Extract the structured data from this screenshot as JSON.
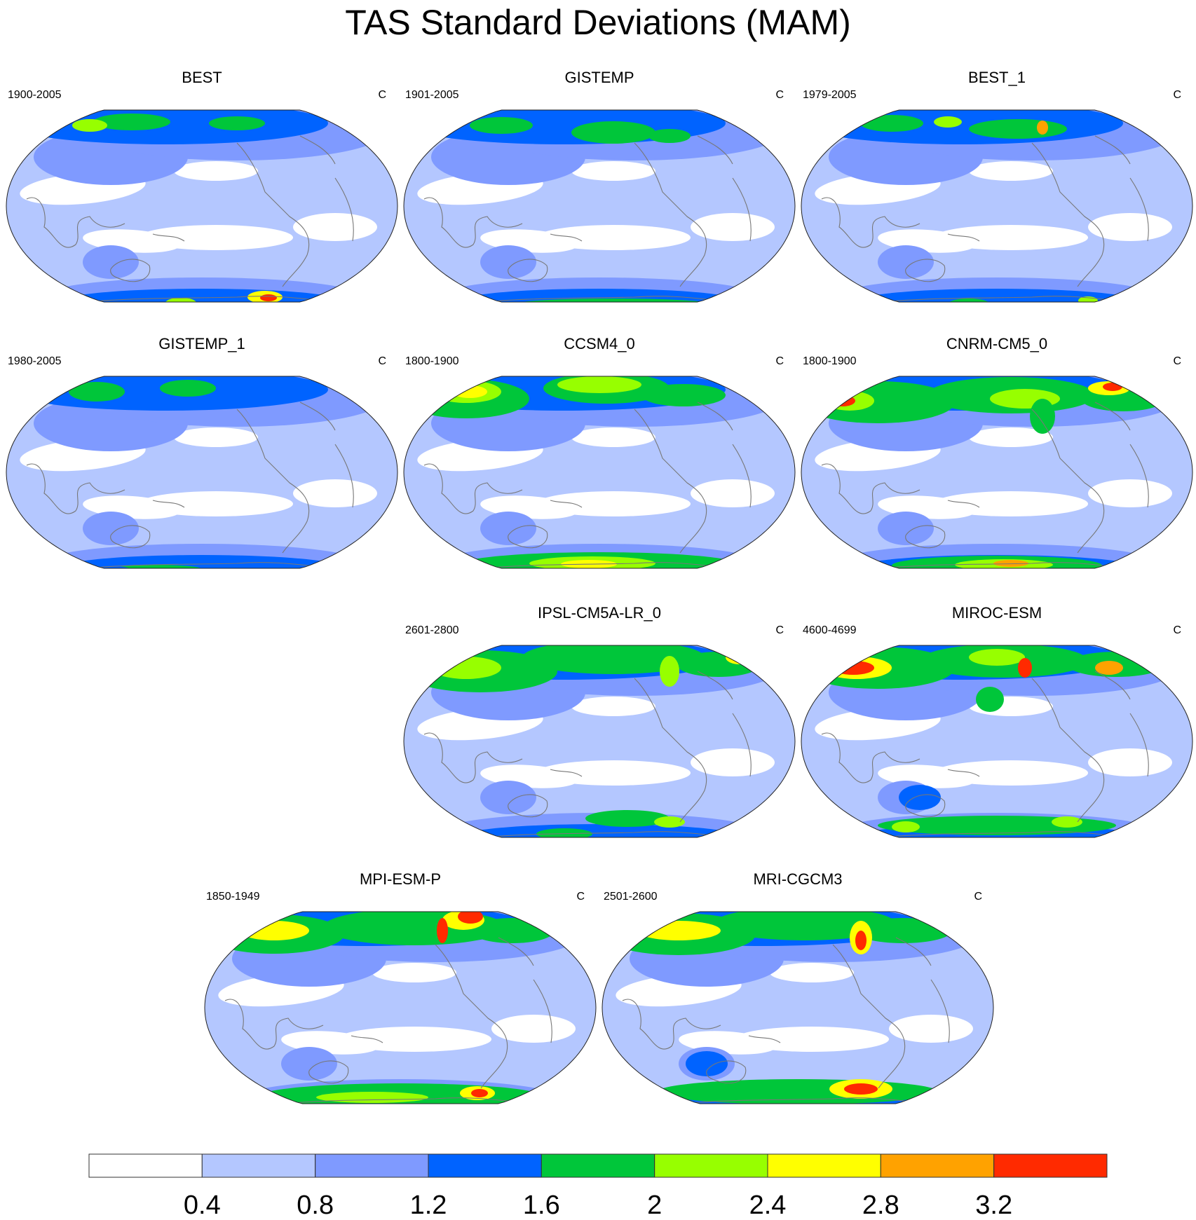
{
  "title": "TAS Standard Deviations (MAM)",
  "colors": {
    "levels": [
      "#ffffff",
      "#b4c7ff",
      "#7f9aff",
      "#0063ff",
      "#00c63a",
      "#97ff00",
      "#ffff00",
      "#ffa200",
      "#ff2a00"
    ],
    "coastline": "#777777",
    "outline": "#222222"
  },
  "colorbar": {
    "labels": [
      "0.4",
      "0.8",
      "1.2",
      "1.6",
      "2",
      "2.4",
      "2.8",
      "3.2"
    ]
  },
  "panels": [
    {
      "title": "BEST",
      "period": "1900-2005",
      "units": "C"
    },
    {
      "title": "GISTEMP",
      "period": "1901-2005",
      "units": "C"
    },
    {
      "title": "BEST_1",
      "period": "1979-2005",
      "units": "C"
    },
    {
      "title": "GISTEMP_1",
      "period": "1980-2005",
      "units": "C"
    },
    {
      "title": "CCSM4_0",
      "period": "1800-1900",
      "units": "C"
    },
    {
      "title": "CNRM-CM5_0",
      "period": "1800-1900",
      "units": "C"
    },
    {
      "title": "IPSL-CM5A-LR_0",
      "period": "2601-2800",
      "units": "C"
    },
    {
      "title": "MIROC-ESM",
      "period": "4600-4699",
      "units": "C"
    },
    {
      "title": "MPI-ESM-P",
      "period": "1850-1949",
      "units": "C"
    },
    {
      "title": "MRI-CGCM3",
      "period": "2501-2600",
      "units": "C"
    }
  ],
  "chart_data": {
    "type": "heatmap",
    "title": "TAS Standard Deviations (MAM)",
    "units": "C",
    "projection": "Winkel tripel (Pacific-centred)",
    "colorbar_levels": [
      0.4,
      0.8,
      1.2,
      1.6,
      2,
      2.4,
      2.8,
      3.2
    ],
    "panels": [
      {
        "name": "BEST",
        "period": "1900-2005",
        "nh_land_max_level": 5,
        "southern_ocean_max_level": 8
      },
      {
        "name": "GISTEMP",
        "period": "1901-2005",
        "nh_land_max_level": 5,
        "southern_ocean_max_level": 5
      },
      {
        "name": "BEST_1",
        "period": "1979-2005",
        "nh_land_max_level": 8,
        "southern_ocean_max_level": 7
      },
      {
        "name": "GISTEMP_1",
        "period": "1980-2005",
        "nh_land_max_level": 5,
        "southern_ocean_max_level": 5
      },
      {
        "name": "CCSM4_0",
        "period": "1800-1900",
        "nh_land_max_level": 7,
        "southern_ocean_max_level": 7
      },
      {
        "name": "CNRM-CM5_0",
        "period": "1800-1900",
        "nh_land_max_level": 9,
        "southern_ocean_max_level": 7
      },
      {
        "name": "IPSL-CM5A-LR_0",
        "period": "2601-2800",
        "nh_land_max_level": 7,
        "southern_ocean_max_level": 6
      },
      {
        "name": "MIROC-ESM",
        "period": "4600-4699",
        "nh_land_max_level": 9,
        "southern_ocean_max_level": 6
      },
      {
        "name": "MPI-ESM-P",
        "period": "1850-1949",
        "nh_land_max_level": 9,
        "southern_ocean_max_level": 9
      },
      {
        "name": "MRI-CGCM3",
        "period": "2501-2600",
        "nh_land_max_level": 9,
        "southern_ocean_max_level": 9
      }
    ]
  }
}
